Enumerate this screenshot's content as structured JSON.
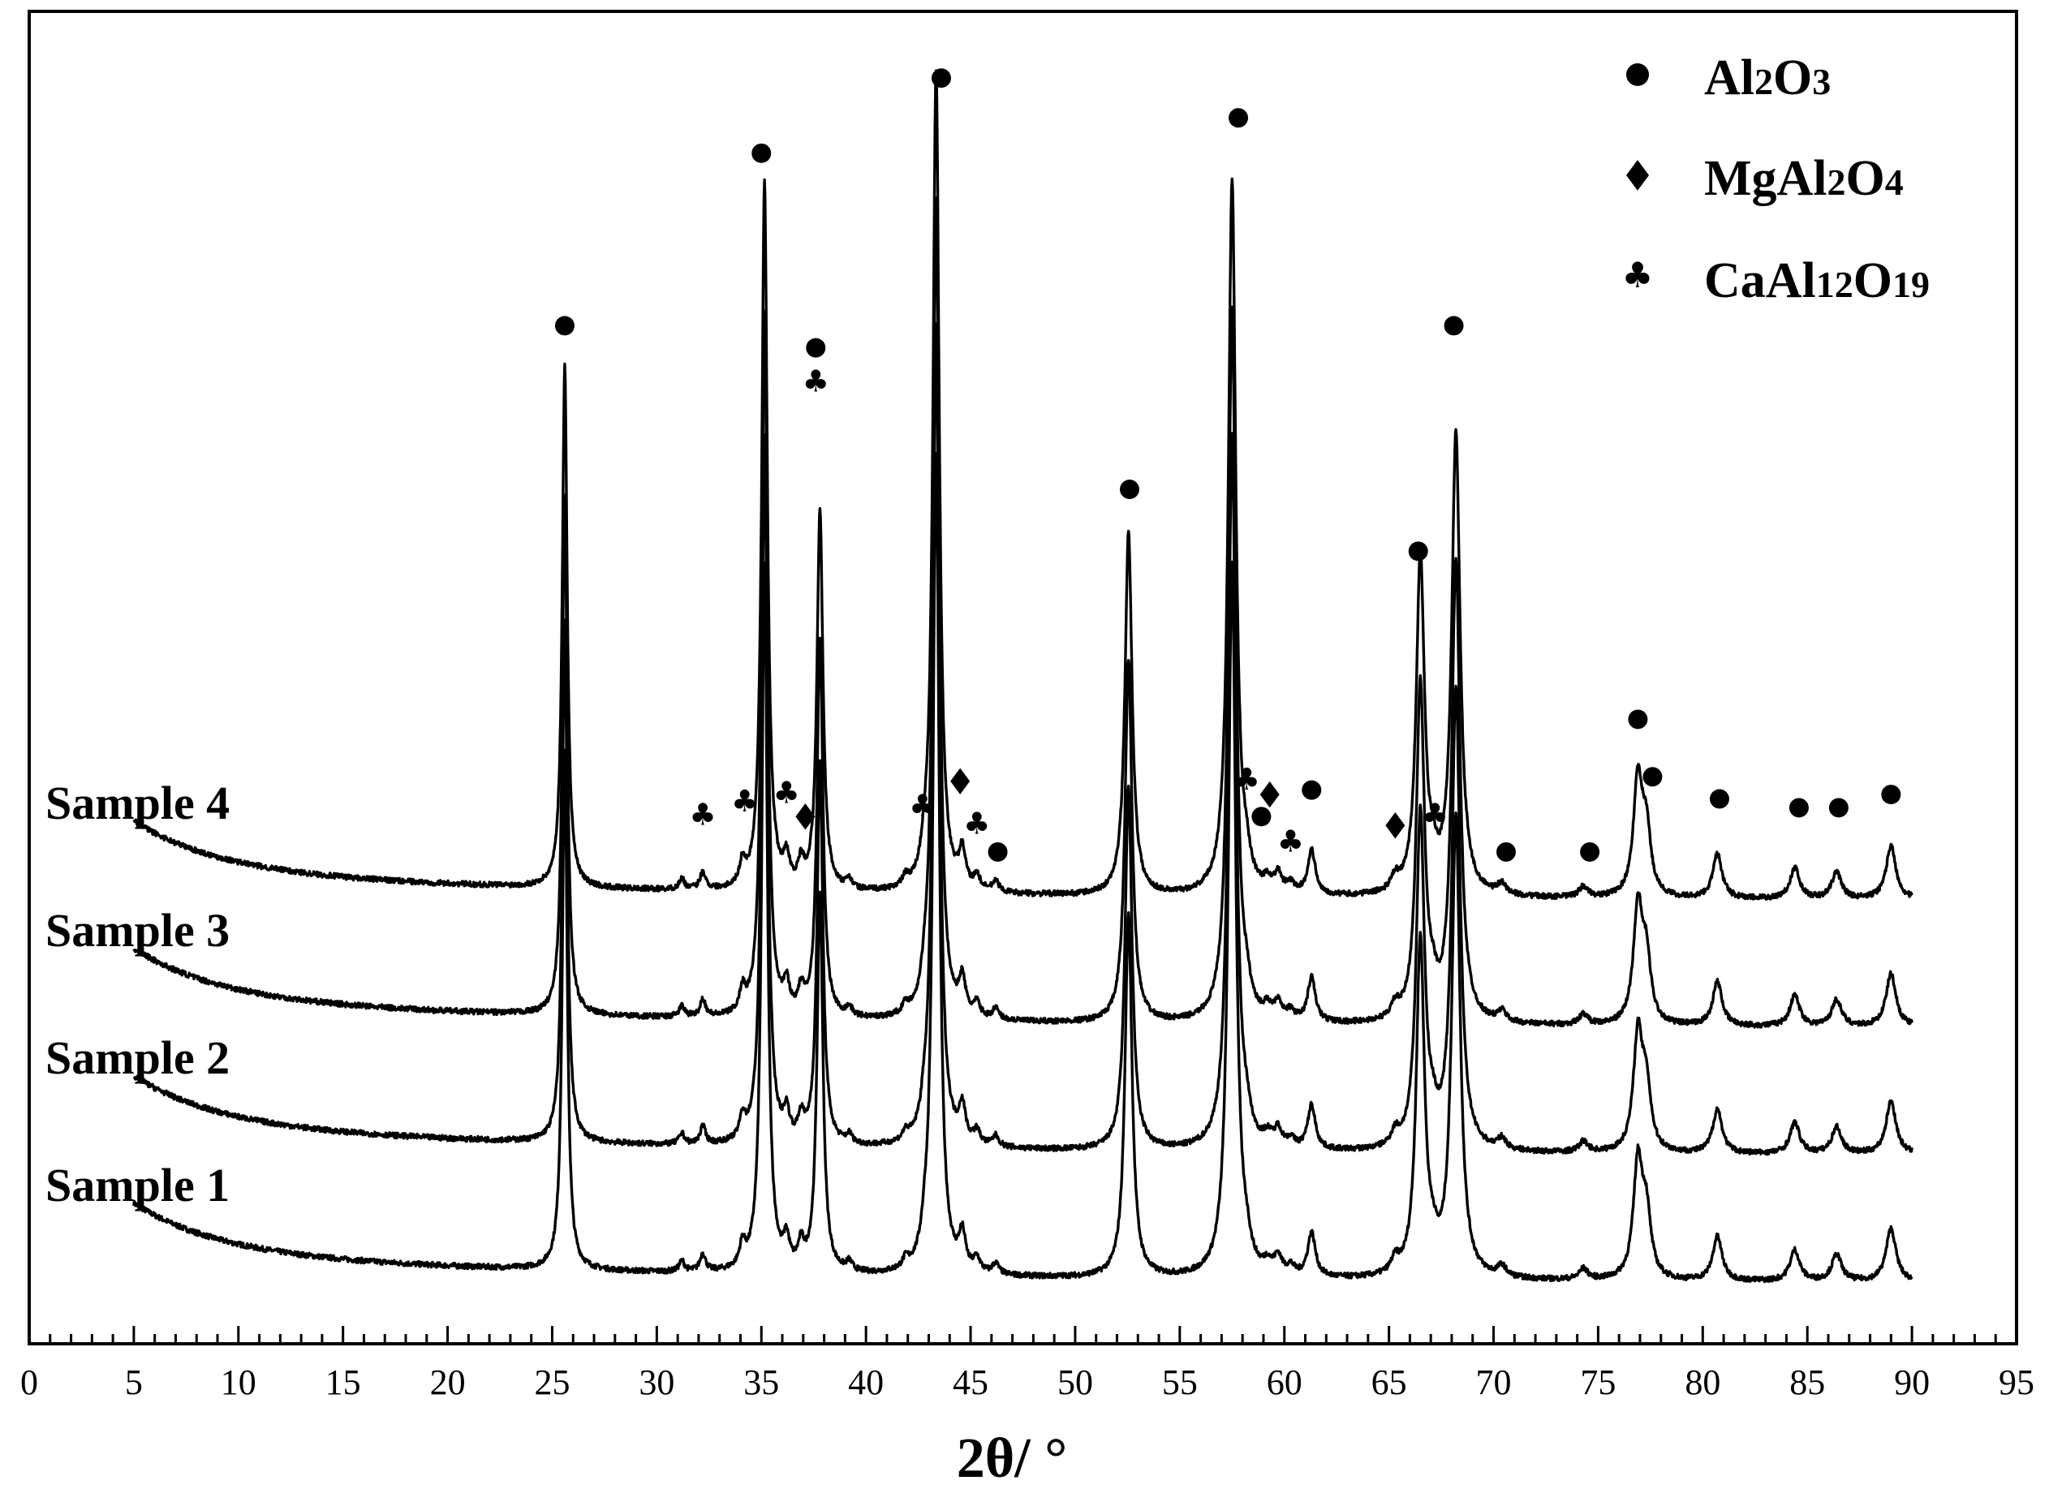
{
  "chart_data": {
    "type": "line",
    "xlabel": "2θ/ °",
    "xlim": [
      0,
      95
    ],
    "x_ticks": [
      "0",
      "5",
      "10",
      "15",
      "20",
      "25",
      "30",
      "35",
      "40",
      "45",
      "50",
      "55",
      "60",
      "65",
      "70",
      "75",
      "80",
      "85",
      "90",
      "95"
    ],
    "grid": false,
    "legend_position": "top-right",
    "legend": [
      {
        "symbol": "circle",
        "parts": [
          {
            "t": "Al",
            "sub": false
          },
          {
            "t": "2",
            "sub": true
          },
          {
            "t": "O",
            "sub": false
          },
          {
            "t": "3",
            "sub": true
          }
        ]
      },
      {
        "symbol": "diamond",
        "parts": [
          {
            "t": "MgAl",
            "sub": false
          },
          {
            "t": "2",
            "sub": true
          },
          {
            "t": "O",
            "sub": false
          },
          {
            "t": "4",
            "sub": true
          }
        ]
      },
      {
        "symbol": "club",
        "parts": [
          {
            "t": "CaAl",
            "sub": false
          },
          {
            "t": "12",
            "sub": true
          },
          {
            "t": "O",
            "sub": false
          },
          {
            "t": "19",
            "sub": true
          }
        ]
      }
    ],
    "series": [
      {
        "name": "Sample 1",
        "offset": 0
      },
      {
        "name": "Sample 2",
        "offset": 1
      },
      {
        "name": "Sample 3",
        "offset": 2
      },
      {
        "name": "Sample 4",
        "offset": 3
      }
    ],
    "peaks": [
      {
        "x": 25.6,
        "h": 0.59
      },
      {
        "x": 31.2,
        "h": 0.012
      },
      {
        "x": 32.2,
        "h": 0.02
      },
      {
        "x": 34.1,
        "h": 0.025
      },
      {
        "x": 35.15,
        "h": 0.8
      },
      {
        "x": 36.2,
        "h": 0.03
      },
      {
        "x": 36.9,
        "h": 0.025
      },
      {
        "x": 37.8,
        "h": 0.43
      },
      {
        "x": 39.2,
        "h": 0.01
      },
      {
        "x": 41.9,
        "h": 0.01
      },
      {
        "x": 42.8,
        "h": 0.02
      },
      {
        "x": 43.35,
        "h": 0.93
      },
      {
        "x": 44.6,
        "h": 0.04
      },
      {
        "x": 45.3,
        "h": 0.015
      },
      {
        "x": 46.2,
        "h": 0.012
      },
      {
        "x": 52.55,
        "h": 0.41
      },
      {
        "x": 57.5,
        "h": 0.81
      },
      {
        "x": 58.2,
        "h": 0.02
      },
      {
        "x": 59.2,
        "h": 0.012
      },
      {
        "x": 59.7,
        "h": 0.02
      },
      {
        "x": 60.3,
        "h": 0.01
      },
      {
        "x": 61.3,
        "h": 0.05
      },
      {
        "x": 65.3,
        "h": 0.015
      },
      {
        "x": 66.5,
        "h": 0.38
      },
      {
        "x": 67.1,
        "h": 0.02
      },
      {
        "x": 68.2,
        "h": 0.52
      },
      {
        "x": 70.4,
        "h": 0.012
      },
      {
        "x": 74.3,
        "h": 0.012
      },
      {
        "x": 76.9,
        "h": 0.13
      },
      {
        "x": 77.3,
        "h": 0.07
      },
      {
        "x": 80.7,
        "h": 0.05
      },
      {
        "x": 84.4,
        "h": 0.035
      },
      {
        "x": 86.4,
        "h": 0.03
      },
      {
        "x": 89.0,
        "h": 0.06
      }
    ],
    "phase_markers": [
      {
        "x": 25.6,
        "level": 0.64,
        "symbol": "circle"
      },
      {
        "x": 35.0,
        "level": 0.835,
        "symbol": "circle"
      },
      {
        "x": 37.6,
        "level": 0.615,
        "symbol": "circle"
      },
      {
        "x": 37.6,
        "level": 0.575,
        "symbol": "club"
      },
      {
        "x": 43.6,
        "level": 0.92,
        "symbol": "circle"
      },
      {
        "x": 52.6,
        "level": 0.455,
        "symbol": "circle"
      },
      {
        "x": 57.8,
        "level": 0.875,
        "symbol": "circle"
      },
      {
        "x": 68.1,
        "level": 0.64,
        "symbol": "circle"
      },
      {
        "x": 66.4,
        "level": 0.385,
        "symbol": "circle"
      },
      {
        "x": 76.9,
        "level": 0.195,
        "symbol": "circle"
      },
      {
        "x": 77.6,
        "level": 0.13,
        "symbol": "circle"
      },
      {
        "x": 80.8,
        "level": 0.105,
        "symbol": "circle"
      },
      {
        "x": 84.6,
        "level": 0.095,
        "symbol": "circle"
      },
      {
        "x": 86.5,
        "level": 0.095,
        "symbol": "circle"
      },
      {
        "x": 89.0,
        "level": 0.11,
        "symbol": "circle"
      },
      {
        "x": 70.6,
        "level": 0.045,
        "symbol": "circle"
      },
      {
        "x": 74.6,
        "level": 0.045,
        "symbol": "circle"
      },
      {
        "x": 61.3,
        "level": 0.115,
        "symbol": "circle"
      },
      {
        "x": 58.9,
        "level": 0.085,
        "symbol": "circle"
      },
      {
        "x": 46.3,
        "level": 0.045,
        "symbol": "circle"
      },
      {
        "x": 32.2,
        "level": 0.085,
        "symbol": "club"
      },
      {
        "x": 34.2,
        "level": 0.1,
        "symbol": "club"
      },
      {
        "x": 36.2,
        "level": 0.11,
        "symbol": "club"
      },
      {
        "x": 37.1,
        "level": 0.085,
        "symbol": "diamond"
      },
      {
        "x": 42.7,
        "level": 0.095,
        "symbol": "club"
      },
      {
        "x": 44.5,
        "level": 0.125,
        "symbol": "diamond"
      },
      {
        "x": 45.3,
        "level": 0.075,
        "symbol": "club"
      },
      {
        "x": 58.2,
        "level": 0.125,
        "symbol": "club"
      },
      {
        "x": 59.3,
        "level": 0.11,
        "symbol": "diamond"
      },
      {
        "x": 60.3,
        "level": 0.055,
        "symbol": "club"
      },
      {
        "x": 65.3,
        "level": 0.075,
        "symbol": "diamond"
      },
      {
        "x": 67.2,
        "level": 0.085,
        "symbol": "club"
      }
    ]
  }
}
